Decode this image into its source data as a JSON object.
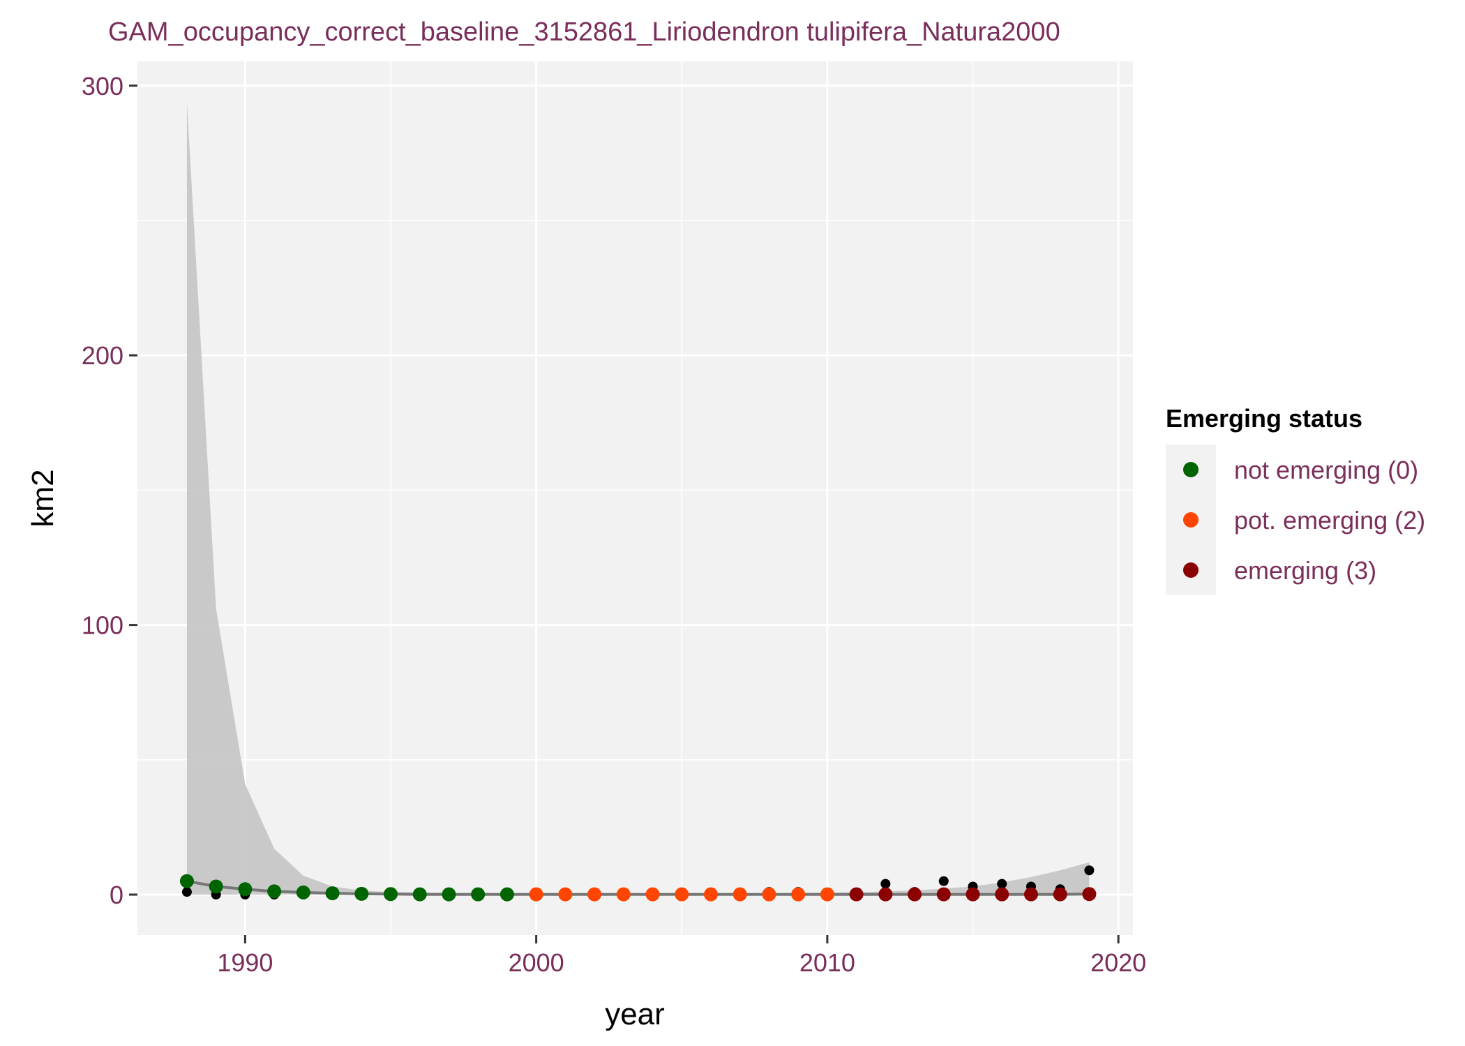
{
  "chart_data": {
    "type": "scatter",
    "title": "GAM_occupancy_correct_baseline_3152861_Liriodendron tulipifera_Natura2000",
    "xlabel": "year",
    "ylabel": "km2",
    "xlim": [
      1986.3,
      2020.5
    ],
    "ylim": [
      -15,
      309
    ],
    "x_ticks": [
      1990,
      2000,
      2010,
      2020
    ],
    "y_ticks": [
      0,
      100,
      200,
      300
    ],
    "grid": true,
    "legend": {
      "title": "Emerging status",
      "placement": "right",
      "entries": [
        {
          "label": "not emerging (0)",
          "color": "#006400"
        },
        {
          "label": "pot. emerging (2)",
          "color": "#FF4500"
        },
        {
          "label": "emerging (3)",
          "color": "#8B0000"
        }
      ]
    },
    "observed": {
      "color": "#000000",
      "x": [
        1988,
        1989,
        1990,
        1991,
        1992,
        1993,
        1994,
        1995,
        1996,
        1997,
        1998,
        1999,
        2000,
        2001,
        2002,
        2003,
        2004,
        2005,
        2006,
        2007,
        2008,
        2009,
        2010,
        2011,
        2012,
        2013,
        2014,
        2015,
        2016,
        2017,
        2018,
        2019
      ],
      "y": [
        1,
        0,
        0,
        0,
        0,
        0,
        0,
        0,
        0,
        0,
        0,
        0,
        0,
        0,
        0,
        0,
        0,
        0,
        0,
        0,
        1,
        1,
        0,
        0,
        4,
        1,
        5,
        3,
        4,
        3,
        2,
        9
      ]
    },
    "fitted": {
      "line_color": "#777777",
      "band_color": "#c4c4c4",
      "x": [
        1988,
        1989,
        1990,
        1991,
        1992,
        1993,
        1994,
        1995,
        1996,
        1997,
        1998,
        1999,
        2000,
        2001,
        2002,
        2003,
        2004,
        2005,
        2006,
        2007,
        2008,
        2009,
        2010,
        2011,
        2012,
        2013,
        2014,
        2015,
        2016,
        2017,
        2018,
        2019
      ],
      "y": [
        5,
        3,
        2,
        1.2,
        0.8,
        0.5,
        0.3,
        0.2,
        0.1,
        0.1,
        0.1,
        0.1,
        0.1,
        0.1,
        0.1,
        0.1,
        0.1,
        0.1,
        0.1,
        0.1,
        0.1,
        0.1,
        0.1,
        0.1,
        0.1,
        0.1,
        0.1,
        0.1,
        0.1,
        0.1,
        0.1,
        0.2
      ],
      "lower": [
        0,
        0,
        0,
        0,
        0,
        0,
        0,
        0,
        0,
        0,
        0,
        0,
        0,
        0,
        0,
        0,
        0,
        0,
        0,
        0,
        0,
        0,
        0,
        0,
        0,
        0,
        0,
        0,
        0,
        0,
        0,
        0
      ],
      "upper": [
        294,
        106,
        41,
        17,
        7,
        3,
        1.5,
        1,
        0.8,
        0.6,
        0.5,
        0.5,
        0.5,
        0.5,
        0.5,
        0.5,
        0.5,
        0.5,
        0.5,
        0.5,
        0.5,
        0.6,
        0.7,
        0.9,
        1.2,
        1.6,
        2.2,
        3,
        4.5,
        6.5,
        9,
        12
      ],
      "status": [
        0,
        0,
        0,
        0,
        0,
        0,
        0,
        0,
        0,
        0,
        0,
        0,
        2,
        2,
        2,
        2,
        2,
        2,
        2,
        2,
        2,
        2,
        2,
        3,
        3,
        3,
        3,
        3,
        3,
        3,
        3,
        3
      ],
      "status_colors": {
        "0": "#006400",
        "2": "#FF4500",
        "3": "#8B0000"
      }
    }
  }
}
